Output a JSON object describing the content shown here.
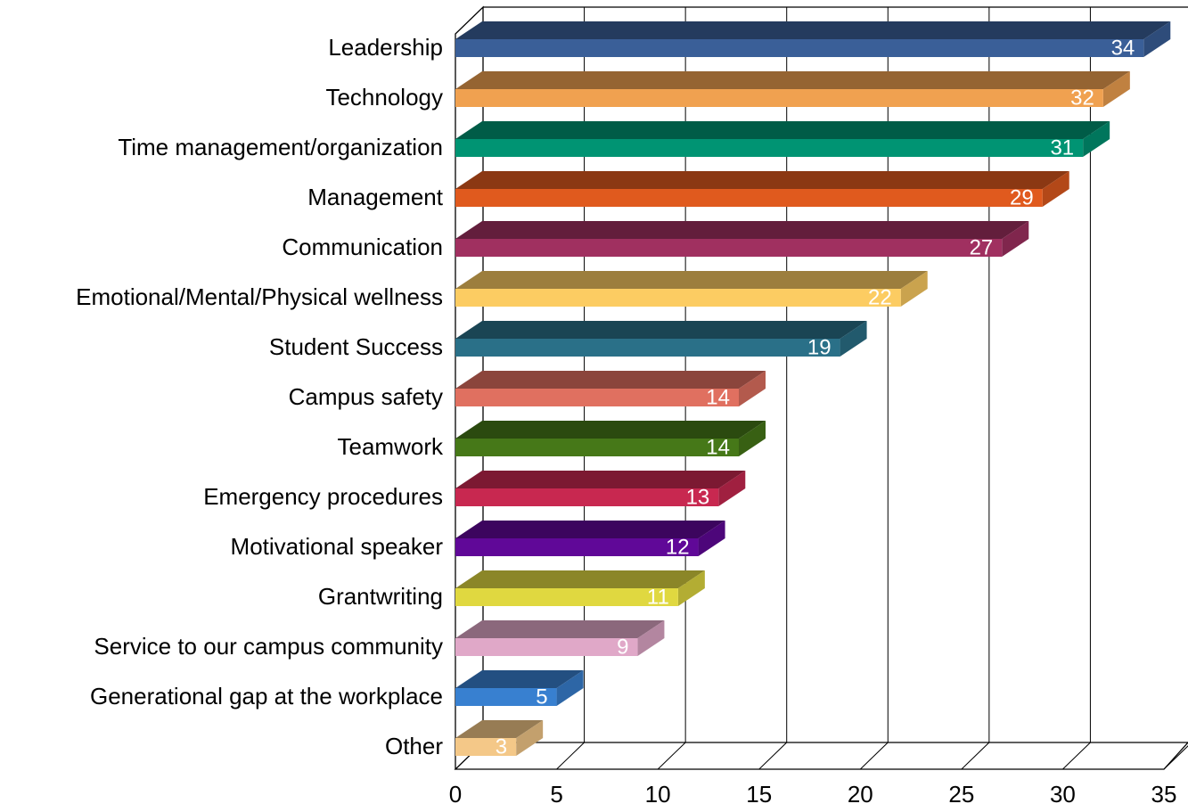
{
  "chart_data": {
    "type": "bar",
    "orientation": "horizontal",
    "categories": [
      "Leadership",
      "Technology",
      "Time management/organization",
      "Management",
      "Communication",
      "Emotional/Mental/Physical wellness",
      "Student Success",
      "Campus safety",
      "Teamwork",
      "Emergency procedures",
      "Motivational speaker",
      "Grantwriting",
      "Service to our campus community",
      "Generational gap at the workplace",
      "Other"
    ],
    "values": [
      34,
      32,
      31,
      29,
      27,
      22,
      19,
      14,
      14,
      13,
      12,
      11,
      9,
      5,
      3
    ],
    "colors": [
      "#3a5f98",
      "#f0a150",
      "#009473",
      "#e05a1e",
      "#a03060",
      "#fccc62",
      "#2a7088",
      "#e07060",
      "#467818",
      "#c82850",
      "#600898",
      "#e0d840",
      "#e0a8c8",
      "#3880d0",
      "#f4c888"
    ],
    "xlim": [
      0,
      35
    ],
    "xticks": [
      0,
      5,
      10,
      15,
      20,
      25,
      30,
      35
    ],
    "grid": true
  }
}
